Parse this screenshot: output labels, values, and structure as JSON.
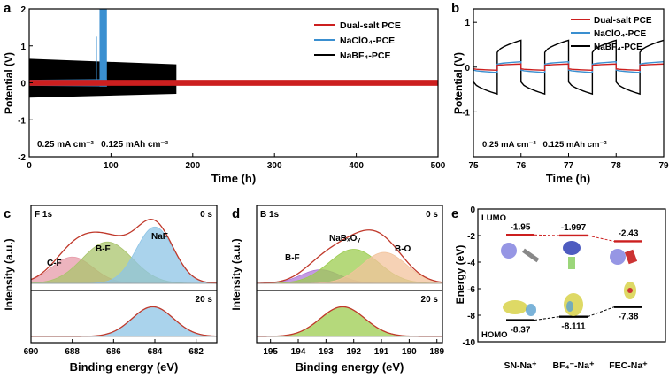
{
  "chart_data": [
    {
      "panel": "a",
      "type": "line",
      "xlabel": "Time (h)",
      "ylabel": "Potential (V)",
      "xlim": [
        0,
        500
      ],
      "ylim": [
        -2,
        2
      ],
      "xticks": [
        "0",
        "100",
        "200",
        "300",
        "400",
        "500"
      ],
      "yticks": [
        "-2",
        "-1",
        "0",
        "1",
        "2"
      ],
      "annotation": "0.25 mA cm⁻²   0.125 mAh cm⁻²",
      "series": [
        {
          "name": "Dual-salt PCE",
          "color": "#cc1f1f",
          "x": [
            0,
            500
          ],
          "y_min": [
            -0.08,
            -0.08
          ],
          "y_max": [
            0.08,
            0.08
          ]
        },
        {
          "name": "NaClO₄-PCE",
          "color": "#3a8fd0",
          "x": [
            0,
            95
          ],
          "y_min": [
            -0.08,
            -0.1
          ],
          "y_max": [
            0.08,
            2.0
          ],
          "spikes": [
            {
              "x": 82,
              "y": 1.25
            },
            {
              "x": 88,
              "y": 1.95
            }
          ]
        },
        {
          "name": "NaBF₄-PCE",
          "color": "#000000",
          "x": [
            0,
            180
          ],
          "y_min": [
            -0.4,
            -0.3
          ],
          "y_max": [
            0.65,
            0.5
          ]
        }
      ]
    },
    {
      "panel": "b",
      "type": "line",
      "xlabel": "Time (h)",
      "ylabel": "Potential (V)",
      "xlim": [
        75,
        79
      ],
      "ylim": [
        -2,
        1.3
      ],
      "xticks": [
        "75",
        "76",
        "77",
        "78",
        "79"
      ],
      "yticks": [
        "-1",
        "0",
        "1"
      ],
      "annotation": "0.25 mA cm⁻²   0.125 mAh cm⁻²",
      "series": [
        {
          "name": "Dual-salt PCE",
          "color": "#cc1f1f",
          "amplitude": 0.07
        },
        {
          "name": "NaClO₄-PCE",
          "color": "#3a8fd0",
          "amplitude": 0.12
        },
        {
          "name": "NaBF₄-PCE",
          "color": "#000000",
          "amplitude": 0.6
        }
      ],
      "half_cycle_h": 0.5
    },
    {
      "panel": "c",
      "type": "area",
      "title": "F 1s",
      "xlabel": "Binding energy (eV)",
      "ylabel": "Intensity (a.u.)",
      "xlim": [
        690,
        681
      ],
      "xticks": [
        "690",
        "688",
        "686",
        "684",
        "682"
      ],
      "spectra": [
        {
          "label": "0 s",
          "peaks": [
            {
              "name": "C-F",
              "center": 688.0,
              "height": 0.35,
              "width": 1.0,
              "color": "#e79ba8"
            },
            {
              "name": "B-F",
              "center": 686.3,
              "height": 0.55,
              "width": 1.2,
              "color": "#a9c46c"
            },
            {
              "name": "NaF",
              "center": 684.0,
              "height": 0.75,
              "width": 0.9,
              "color": "#8ec4e6"
            }
          ]
        },
        {
          "label": "20 s",
          "peaks": [
            {
              "name": "NaF",
              "center": 684.1,
              "height": 0.8,
              "width": 1.0,
              "color": "#8ec4e6"
            }
          ]
        }
      ]
    },
    {
      "panel": "d",
      "type": "area",
      "title": "B 1s",
      "xlabel": "Binding energy (eV)",
      "ylabel": "Intensity (a.u.)",
      "xlim": [
        195.5,
        188.8
      ],
      "xticks": [
        "195",
        "194",
        "193",
        "192",
        "191",
        "190",
        "189"
      ],
      "spectra": [
        {
          "label": "0 s",
          "peaks": [
            {
              "name": "B-F",
              "center": 193.2,
              "height": 0.22,
              "width": 0.7,
              "color": "#b07ad8"
            },
            {
              "name": "NaBxOy",
              "center": 192.0,
              "height": 0.55,
              "width": 0.9,
              "color": "#9ccc4f"
            },
            {
              "name": "B-O",
              "center": 190.9,
              "height": 0.5,
              "width": 0.8,
              "color": "#f3c39c"
            }
          ]
        },
        {
          "label": "20 s",
          "peaks": [
            {
              "name": "NaBxOy",
              "center": 192.4,
              "height": 0.8,
              "width": 0.8,
              "color": "#9ccc4f"
            }
          ]
        }
      ]
    },
    {
      "panel": "e",
      "type": "energy-levels",
      "ylabel": "Energy (eV)",
      "ylim": [
        -10,
        0
      ],
      "yticks": [
        "-10",
        "-8",
        "-6",
        "-4",
        "-2",
        "0"
      ],
      "lumo_label": "LUMO",
      "homo_label": "HOMO",
      "categories": [
        "SN-Na⁺",
        "BF₄⁻-Na⁺",
        "FEC-Na⁺"
      ],
      "lumo": [
        -1.95,
        -1.997,
        -2.43
      ],
      "lumo_labels": [
        "-1.95",
        "-1.997",
        "-2.43"
      ],
      "homo": [
        -8.37,
        -8.111,
        -7.38
      ],
      "homo_labels": [
        "-8.37",
        "-8.111",
        "-7.38"
      ],
      "lumo_color": "#cc1f1f",
      "homo_color": "#000000"
    }
  ],
  "panel_letters": [
    "a",
    "b",
    "c",
    "d",
    "e"
  ],
  "panel_c_labels": [
    "C-F",
    "B-F",
    "NaF"
  ],
  "panel_d_labels": [
    "B-F",
    "NaBₓOᵧ",
    "B-O"
  ]
}
